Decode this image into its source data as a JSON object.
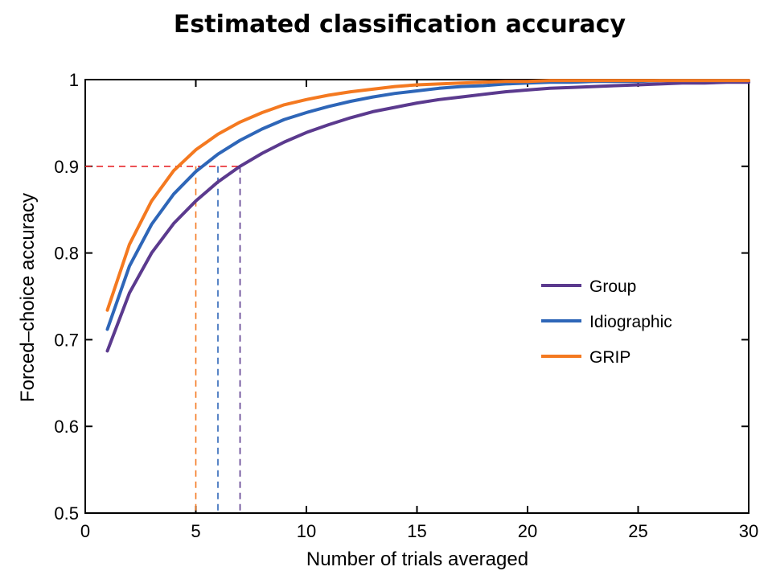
{
  "chart_data": {
    "type": "line",
    "title": "Estimated classification accuracy",
    "xlabel": "Number of trials averaged",
    "ylabel": "Forced–choice accuracy",
    "xlim": [
      0,
      30
    ],
    "ylim": [
      0.5,
      1
    ],
    "xticks": [
      0,
      5,
      10,
      15,
      20,
      25,
      30
    ],
    "yticks": [
      0.5,
      0.6,
      0.7,
      0.8,
      0.9,
      1
    ],
    "ytick_labels": [
      "0.5",
      "0.6",
      "0.7",
      "0.8",
      "0.9",
      "1"
    ],
    "grid": false,
    "legend_position": "center-right",
    "x": [
      1,
      2,
      3,
      4,
      5,
      6,
      7,
      8,
      9,
      10,
      11,
      12,
      13,
      14,
      15,
      16,
      17,
      18,
      19,
      20,
      21,
      22,
      23,
      24,
      25,
      26,
      27,
      28,
      29,
      30
    ],
    "series": [
      {
        "name": "Group",
        "color": "#5b3a8e",
        "values": [
          0.687,
          0.754,
          0.8,
          0.834,
          0.86,
          0.882,
          0.9,
          0.915,
          0.928,
          0.939,
          0.948,
          0.956,
          0.963,
          0.968,
          0.973,
          0.977,
          0.98,
          0.983,
          0.986,
          0.988,
          0.99,
          0.991,
          0.992,
          0.993,
          0.994,
          0.995,
          0.996,
          0.996,
          0.997,
          0.997
        ]
      },
      {
        "name": "Idiographic",
        "color": "#2e66b8",
        "values": [
          0.712,
          0.785,
          0.833,
          0.868,
          0.894,
          0.914,
          0.93,
          0.943,
          0.954,
          0.962,
          0.969,
          0.975,
          0.98,
          0.984,
          0.987,
          0.99,
          0.992,
          0.993,
          0.995,
          0.996,
          0.997,
          0.997,
          0.998,
          0.998,
          0.998,
          0.999,
          0.999,
          0.999,
          0.999,
          0.999
        ]
      },
      {
        "name": "GRIP",
        "color": "#f47920",
        "values": [
          0.734,
          0.81,
          0.86,
          0.895,
          0.919,
          0.937,
          0.951,
          0.962,
          0.971,
          0.977,
          0.982,
          0.986,
          0.989,
          0.992,
          0.994,
          0.995,
          0.996,
          0.997,
          0.998,
          0.998,
          0.999,
          0.999,
          0.999,
          0.999,
          0.999,
          0.999,
          0.999,
          0.999,
          0.999,
          0.999
        ]
      }
    ],
    "threshold_line": {
      "y": 0.9,
      "x_end": 7,
      "color": "#e8262a",
      "style": "dashed"
    },
    "drop_lines": [
      {
        "x": 5,
        "y": 0.9,
        "series": "GRIP",
        "color": "#f47920"
      },
      {
        "x": 6,
        "y": 0.9,
        "series": "Idiographic",
        "color": "#2e66b8"
      },
      {
        "x": 7,
        "y": 0.9,
        "series": "Group",
        "color": "#5b3a8e"
      }
    ]
  }
}
